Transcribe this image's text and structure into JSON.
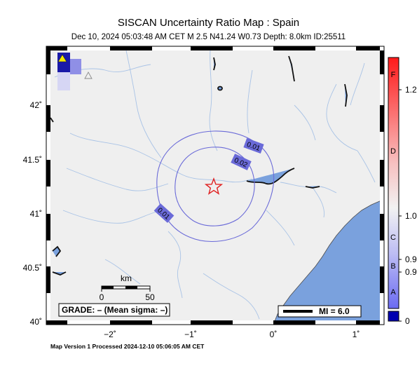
{
  "header": {
    "title": "SISCAN Uncertainty Ratio Map : Spain",
    "subtitle": "Dec 10, 2024 05:03:48 AM CET   M 2.5   N41.24 W0.73   Depth: 8.0km   ID:25511"
  },
  "map": {
    "lat_ticks": [
      "42˚",
      "41.5˚",
      "41˚",
      "40.5˚",
      "40˚"
    ],
    "lon_ticks": [
      "−2˚",
      "−1˚",
      "0˚",
      "1˚"
    ],
    "contours": [
      "0.01",
      "0.02",
      "0.01"
    ],
    "epicenter": {
      "lat": 41.24,
      "lon": -0.73
    },
    "scale": {
      "unit": "km",
      "labels": [
        "0",
        "50"
      ]
    },
    "grade_text": "GRADE: – (Mean sigma: –)",
    "mi_legend": "MI = 6.0",
    "colors": {
      "water": "#7aa1dd",
      "land": "#efefef",
      "contour": "#6a6ad8",
      "epicenter": "#e02020"
    }
  },
  "colorbar": {
    "letters": [
      "F",
      "D",
      "C",
      "B",
      "A"
    ],
    "values": [
      "1.2",
      "1.0",
      "0.9",
      "0.9",
      "0"
    ]
  },
  "footer": "Map Version 1 Processed 2024-12-10 05:06:05 AM CET"
}
